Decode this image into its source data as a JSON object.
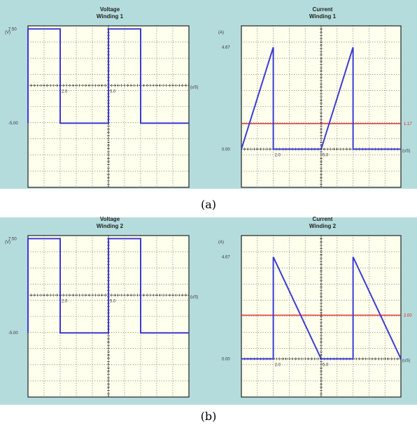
{
  "chart_data": [
    {
      "type": "line",
      "title": "Voltage",
      "subtitle": "Winding 1",
      "ylabel": "(V)",
      "xlabel": "(uS)",
      "y_tick_labels": [
        "7.50",
        "-5.00"
      ],
      "x_tick_labels": [
        "2.0",
        "5.0"
      ],
      "series": [
        {
          "x": [
            0,
            0,
            2,
            2,
            5,
            5,
            7,
            7,
            10
          ],
          "y": [
            -5,
            7.5,
            7.5,
            -5,
            -5,
            7.5,
            7.5,
            -5,
            -5
          ]
        }
      ],
      "reference_lines": []
    },
    {
      "type": "line",
      "title": "Current",
      "subtitle": "Winding 1",
      "ylabel": "(A)",
      "xlabel": "(uS)",
      "y_tick_labels": [
        "4.67",
        "0.00"
      ],
      "x_tick_labels": [
        "2.0",
        "5.0"
      ],
      "series": [
        {
          "x": [
            0,
            2,
            2,
            5,
            7,
            7,
            10
          ],
          "y": [
            0,
            4.67,
            0,
            0,
            4.67,
            0,
            0
          ]
        }
      ],
      "reference_lines": [
        {
          "y": 1.17,
          "label": "1.17"
        }
      ]
    },
    {
      "type": "line",
      "title": "Voltage",
      "subtitle": "Winding 2",
      "ylabel": "(V)",
      "xlabel": "(uS)",
      "y_tick_labels": [
        "7.50",
        "-5.00"
      ],
      "x_tick_labels": [
        "2.0",
        "5.0"
      ],
      "series": [
        {
          "x": [
            0,
            0,
            2,
            2,
            5,
            5,
            7,
            7,
            10
          ],
          "y": [
            -5,
            7.5,
            7.5,
            -5,
            -5,
            7.5,
            7.5,
            -5,
            -5
          ]
        }
      ],
      "reference_lines": []
    },
    {
      "type": "line",
      "title": "Current",
      "subtitle": "Winding 2",
      "ylabel": "(A)",
      "xlabel": "(uS)",
      "y_tick_labels": [
        "4.67",
        "0.00"
      ],
      "x_tick_labels": [
        "2.0",
        "5.0"
      ],
      "series": [
        {
          "x": [
            0,
            2,
            2,
            5,
            7,
            7,
            10
          ],
          "y": [
            0,
            0,
            4.67,
            0,
            0,
            4.67,
            0
          ]
        }
      ],
      "reference_lines": [
        {
          "y": 2.0,
          "label": "2.00"
        }
      ]
    }
  ],
  "captions": {
    "a": "(a)",
    "b": "(b)"
  },
  "colors": {
    "panel_bg": "#b5dcdc",
    "plot_bg": "#ffffee",
    "trace": "#3b3bd6",
    "reference": "#e02020",
    "grid": "#555555"
  }
}
